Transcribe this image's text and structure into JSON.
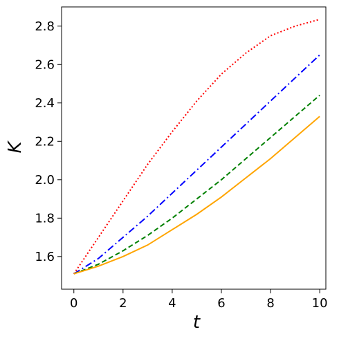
{
  "chart_data": {
    "type": "line",
    "x_label": "t",
    "y_label": "K",
    "x": [
      0,
      1,
      2,
      3,
      4,
      5,
      6,
      7,
      8,
      9,
      10
    ],
    "series": [
      {
        "color": "#ff0000",
        "style": "dotted",
        "values": [
          1.51,
          1.7,
          1.89,
          2.08,
          2.25,
          2.41,
          2.55,
          2.66,
          2.75,
          2.8,
          2.835
        ]
      },
      {
        "color": "#0000ff",
        "style": "dashdot",
        "values": [
          1.51,
          1.59,
          1.7,
          1.81,
          1.93,
          2.05,
          2.17,
          2.29,
          2.41,
          2.53,
          2.65
        ]
      },
      {
        "color": "#008000",
        "style": "dashed",
        "values": [
          1.51,
          1.56,
          1.63,
          1.71,
          1.8,
          1.9,
          2.0,
          2.11,
          2.22,
          2.33,
          2.44
        ]
      },
      {
        "color": "#ffa500",
        "style": "solid",
        "values": [
          1.51,
          1.55,
          1.6,
          1.66,
          1.74,
          1.82,
          1.91,
          2.01,
          2.11,
          2.22,
          2.33
        ]
      }
    ],
    "xlim": [
      -0.5,
      10.25
    ],
    "ylim": [
      1.43,
      2.9
    ],
    "xticks": [
      0,
      2,
      4,
      6,
      8,
      10
    ],
    "yticks": [
      1.6,
      1.8,
      {
        "value": 2.0,
        "label": "2.0"
      },
      2.2,
      2.4,
      2.6,
      2.8
    ],
    "grid": false
  }
}
